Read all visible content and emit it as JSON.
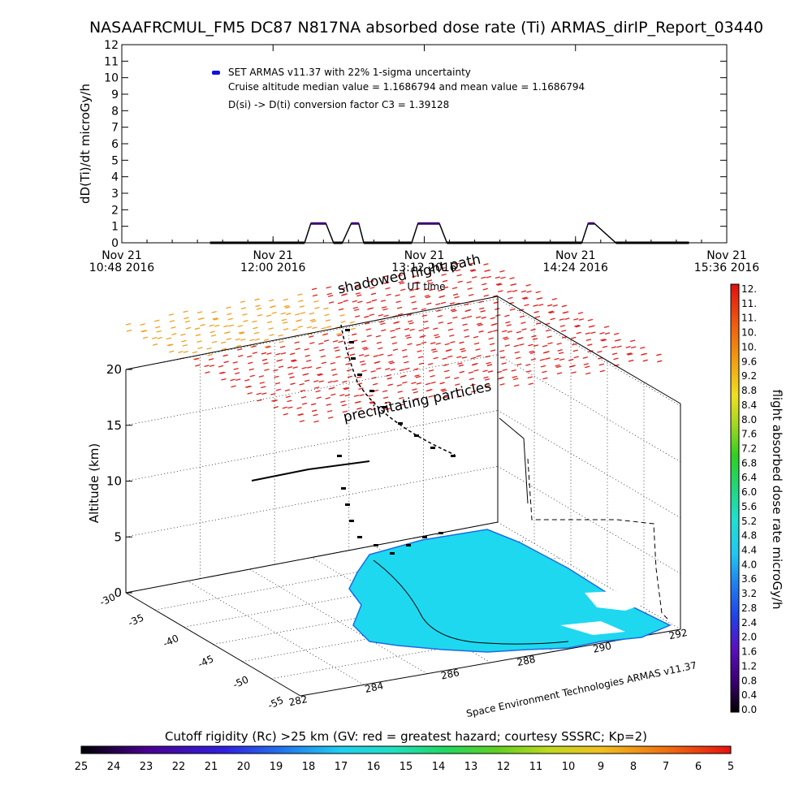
{
  "title": "NASAAFRCMUL_FM5 DC87 N817NA absorbed dose rate (Ti) ARMAS_dirIP_Report_03440",
  "chart_data": [
    {
      "type": "line",
      "title": "NASAAFRCMUL_FM5 DC87 N817NA absorbed dose rate (Ti) ARMAS_dirIP_Report_03440",
      "ylabel": "dD(Ti)/dt microGy/h",
      "xlabel": "UT time",
      "ylim": [
        0,
        12
      ],
      "y_ticks": [
        "0",
        "1",
        "2",
        "3",
        "4",
        "5",
        "6",
        "7",
        "8",
        "9",
        "10",
        "11",
        "12"
      ],
      "x_ticks": [
        {
          "line1": "Nov 21",
          "line2": "10:48 2016"
        },
        {
          "line1": "Nov 21",
          "line2": "12:00 2016"
        },
        {
          "line1": "Nov 21",
          "line2": "13:12 2016"
        },
        {
          "line1": "Nov 21",
          "line2": "14:24 2016"
        },
        {
          "line1": "Nov 21",
          "line2": "15:36 2016"
        }
      ],
      "legend": {
        "placement": "top-left",
        "color": "#1010e0",
        "lines": [
          "SET ARMAS v11.37 with 22% 1-sigma uncertainty",
          "Cruise altitude median value = 1.1686794 and mean value = 1.1686794",
          "D(si) -> D(ti) conversion factor C3 = 1.39128"
        ]
      },
      "x_unit": "hours UT",
      "xlim": [
        10.8,
        15.6
      ],
      "series": [
        {
          "x": [
            11.5,
            12.2,
            12.25,
            12.3,
            12.42,
            12.48,
            12.52,
            12.55,
            12.62,
            12.68,
            12.72,
            13.05,
            13.1,
            13.15,
            13.32,
            13.38,
            13.42,
            14.45,
            14.5,
            14.55,
            14.72,
            14.78,
            14.82,
            15.3
          ],
          "y": [
            0,
            0,
            0,
            1.17,
            1.17,
            0,
            0,
            0,
            1.17,
            1.17,
            0,
            0,
            0,
            1.17,
            1.17,
            0,
            0,
            0,
            1.17,
            1.17,
            0,
            0,
            0,
            0
          ],
          "color": "#000000"
        }
      ]
    },
    {
      "type": "3d-scatter",
      "zlabel": "Altitude (km)",
      "z_ticks": [
        "0",
        "5",
        "10",
        "15",
        "20"
      ],
      "lat_ticks": [
        "-30",
        "-35",
        "-40",
        "-45",
        "-50",
        "-55"
      ],
      "lon_ticks": [
        "282",
        "284",
        "286",
        "288",
        "290",
        "292"
      ],
      "annotations": [
        "shadowed flight path",
        "UT time",
        "precipitating particles",
        "Space Environment Technologies ARMAS v11.37"
      ],
      "colorbar": {
        "label": "flight absorbed dose rate microGy/h",
        "ticks": [
          "12.",
          "11.",
          "11.",
          "10.",
          "10.",
          "9.6",
          "9.2",
          "8.8",
          "8.4",
          "8.0",
          "7.6",
          "7.2",
          "6.8",
          "6.4",
          "6.0",
          "5.6",
          "5.2",
          "4.8",
          "4.4",
          "4.0",
          "3.6",
          "3.2",
          "2.8",
          "2.4",
          "2.0",
          "1.6",
          "1.2",
          "0.8",
          "0.4",
          "0.0"
        ],
        "range": [
          0,
          12
        ]
      },
      "rigidity_bar": {
        "label": "Cutoff rigidity (Rc) >25 km (GV: red = greatest hazard; courtesy SSSRC; Kp=2)",
        "ticks": [
          "25",
          "24",
          "23",
          "22",
          "21",
          "20",
          "19",
          "18",
          "17",
          "16",
          "15",
          "14",
          "13",
          "12",
          "11",
          "10",
          "9",
          "8",
          "7",
          "6",
          "5"
        ]
      },
      "colors": {
        "land": "#1ed8f0",
        "coast": "#1a6de0",
        "precip_low": "#f0a020",
        "precip_high": "#e02020"
      }
    }
  ]
}
